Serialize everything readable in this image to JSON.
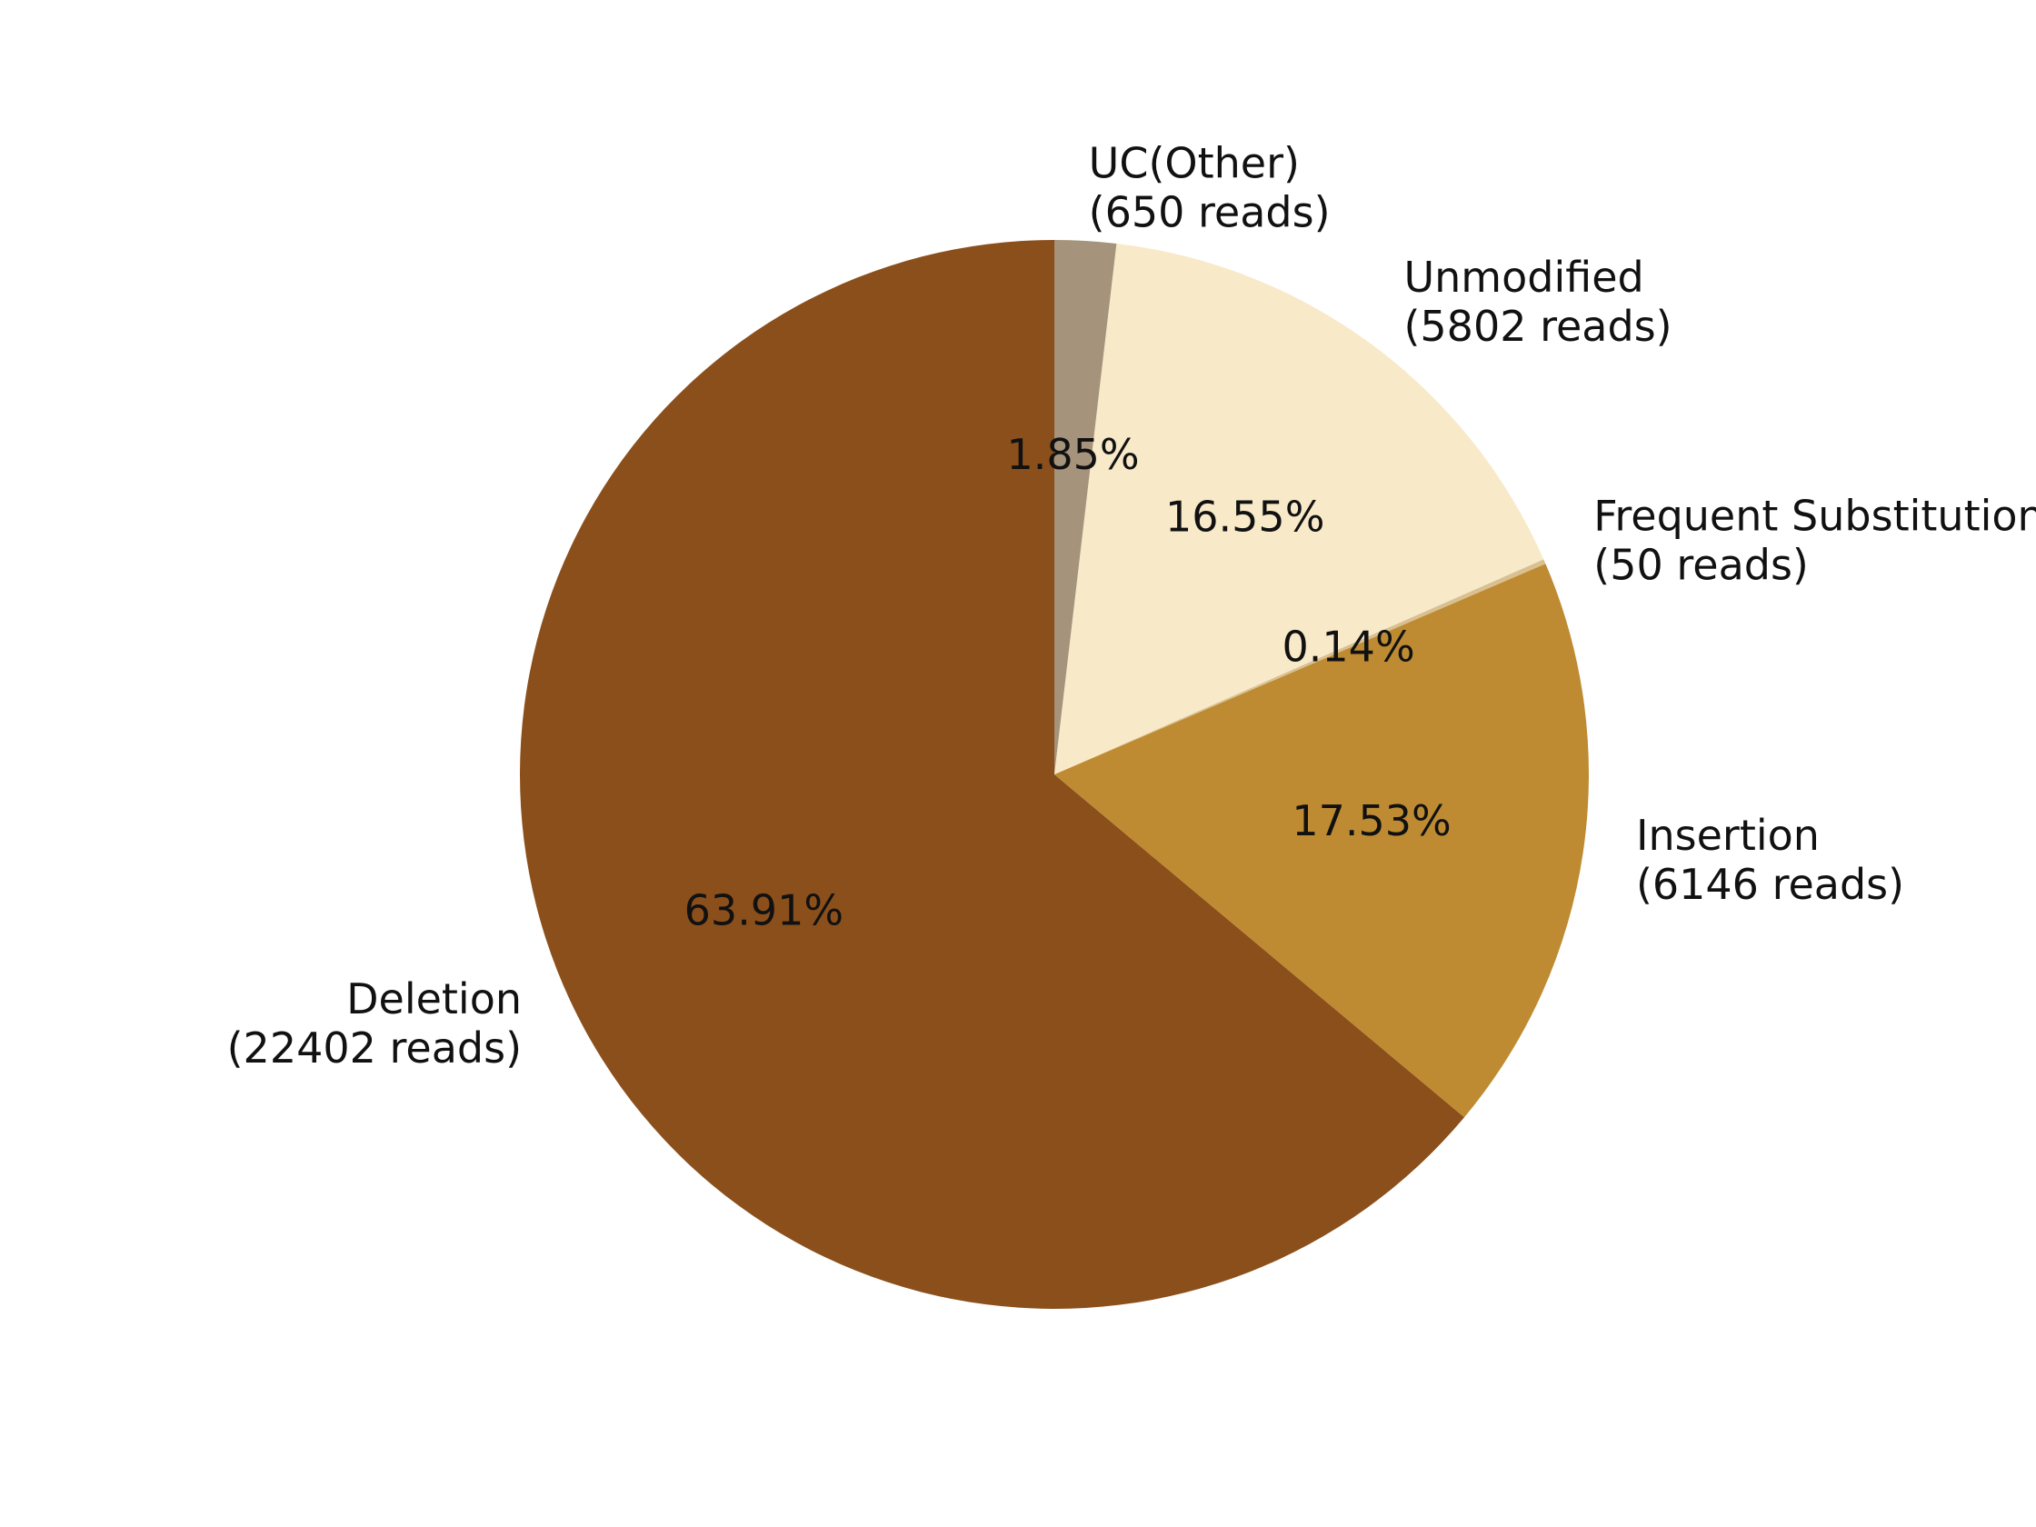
{
  "chart_data": {
    "type": "pie",
    "title": "",
    "start_angle_deg": 90,
    "direction": "counterclockwise",
    "legend": "none",
    "slices": [
      {
        "label": "Deletion",
        "reads_label": "(22402 reads)",
        "value": 22402,
        "percent_label": "63.91%",
        "color": "#8b4f1b"
      },
      {
        "label": "Insertion",
        "reads_label": "(6146 reads)",
        "value": 6146,
        "percent_label": "17.53%",
        "color": "#be8b32"
      },
      {
        "label": "Frequent Substitution",
        "reads_label": "(50 reads)",
        "value": 50,
        "percent_label": "0.14%",
        "color": "#d8c090"
      },
      {
        "label": "Unmodified",
        "reads_label": "(5802 reads)",
        "value": 5802,
        "percent_label": "16.55%",
        "color": "#f8e9c9"
      },
      {
        "label": "UC(Other)",
        "reads_label": "(650 reads)",
        "value": 650,
        "percent_label": "1.85%",
        "color": "#a5937b"
      }
    ]
  }
}
